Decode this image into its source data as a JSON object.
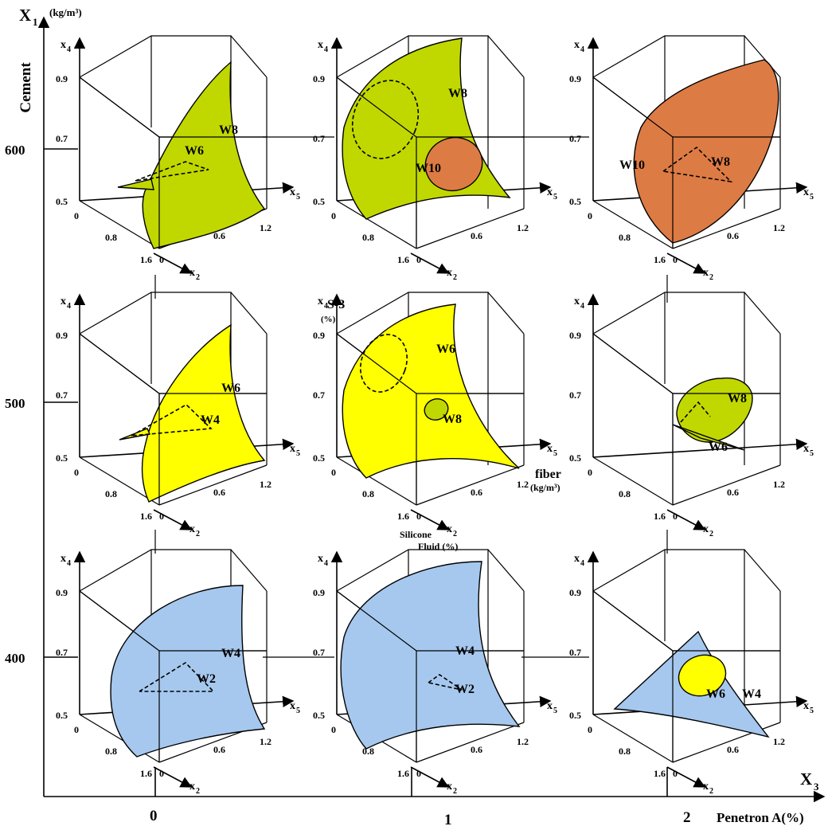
{
  "axes": {
    "x1": {
      "name": "X",
      "sub": "1",
      "unit": "(kg/m³)",
      "title": "Cement",
      "ticks": [
        "600",
        "500",
        "400"
      ]
    },
    "x3": {
      "name": "X",
      "sub": "3",
      "title": "Penetron A(%)",
      "ticks": [
        "0",
        "1",
        "2"
      ]
    }
  },
  "cube_labels": {
    "x4": "x",
    "x4_sub": "4",
    "x5": "x",
    "x5_sub": "5",
    "x2": "x",
    "x2_sub": "2",
    "x4_ticks": [
      "0.9",
      "0.7",
      "0.5"
    ],
    "x5_ticks": [
      "0.6",
      "1.2"
    ],
    "x2_ticks": [
      "0",
      "0.8",
      "1.6"
    ]
  },
  "annotations": {
    "s3": "S-3",
    "s3_unit": "(%)",
    "fiber": "fiber",
    "fiber_unit": "(kg/m³)",
    "silicone_line1": "Silicone",
    "silicone_line2": "Fluid (%)"
  },
  "colors": {
    "green": "#c0d800",
    "orange": "#dd7b44",
    "yellow": "#ffff00",
    "blue": "#a6c8ee"
  },
  "panels": [
    {
      "row": 0,
      "col": 0,
      "labels": [
        "W8",
        "W6"
      ]
    },
    {
      "row": 0,
      "col": 1,
      "labels": [
        "W8",
        "W10"
      ]
    },
    {
      "row": 0,
      "col": 2,
      "labels": [
        "W10",
        "W8"
      ]
    },
    {
      "row": 1,
      "col": 0,
      "labels": [
        "W6",
        "W4"
      ]
    },
    {
      "row": 1,
      "col": 1,
      "labels": [
        "W6",
        "W8"
      ]
    },
    {
      "row": 1,
      "col": 2,
      "labels": [
        "W8",
        "W6"
      ]
    },
    {
      "row": 2,
      "col": 0,
      "labels": [
        "W4",
        "W2"
      ]
    },
    {
      "row": 2,
      "col": 1,
      "labels": [
        "W4",
        "W2"
      ]
    },
    {
      "row": 2,
      "col": 2,
      "labels": [
        "W6",
        "W4"
      ]
    }
  ]
}
